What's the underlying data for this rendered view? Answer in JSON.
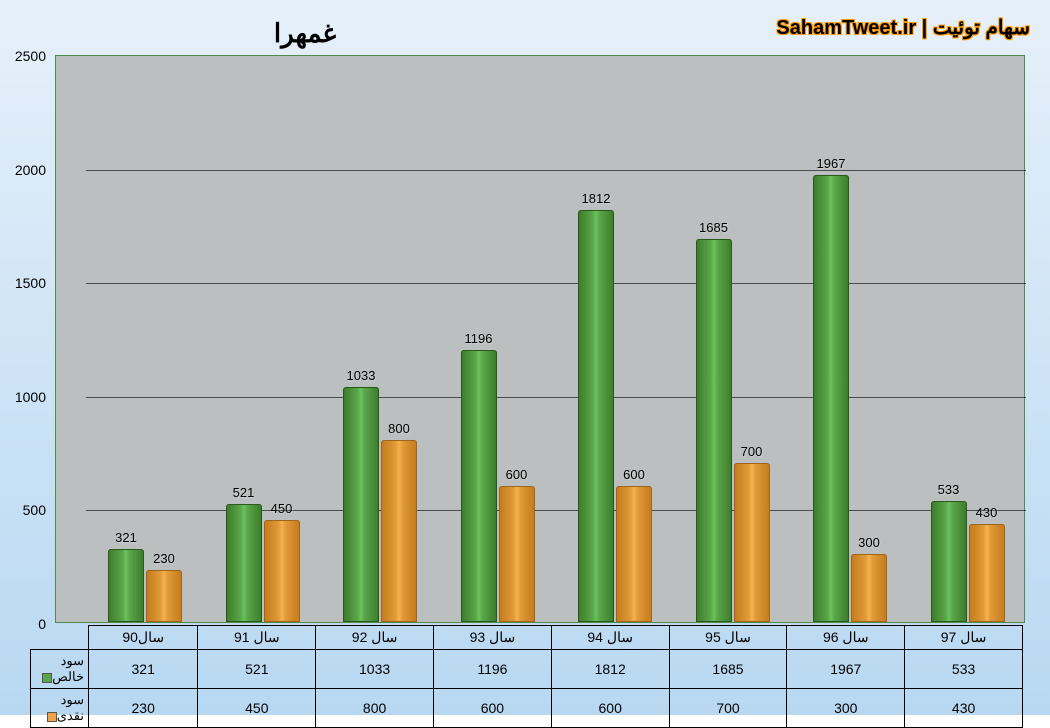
{
  "title": "غمهرا",
  "watermark": {
    "left": "سهام توئیت",
    "sep": "|",
    "right": "SahamTweet.ir"
  },
  "chart": {
    "type": "bar",
    "background_page_gradient": [
      "#e6f0fa",
      "#b8d8f2"
    ],
    "plot_bg": "#bcbfbf",
    "ymax": 2500,
    "ytick_step": 500,
    "categories": [
      "سال90",
      "سال 91",
      "سال 92",
      "سال 93",
      "سال 94",
      "سال 95",
      "سال 96",
      "سال 97"
    ],
    "series": [
      {
        "name": "سود خالص",
        "color_main": "#5aa64a",
        "legend_color": "#5aa64a",
        "values": [
          321,
          521,
          1033,
          1196,
          1812,
          1685,
          1967,
          533
        ]
      },
      {
        "name": "سود نقدی",
        "color_main": "#e09a3a",
        "legend_color": "#efa24a",
        "values": [
          230,
          450,
          800,
          600,
          600,
          700,
          300,
          430
        ]
      }
    ]
  }
}
